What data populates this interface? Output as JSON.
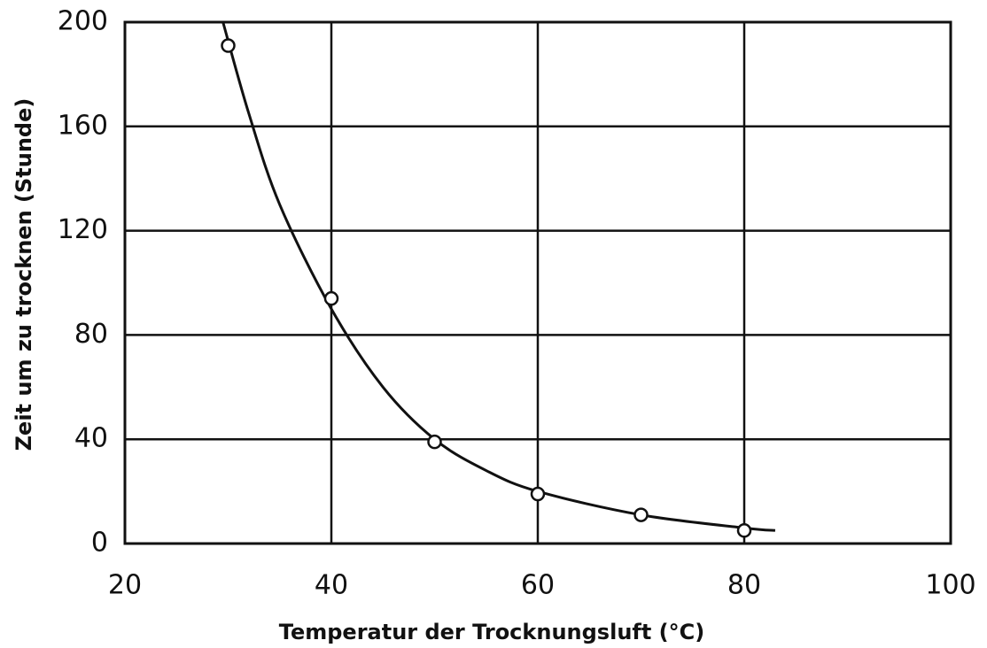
{
  "chart_data": {
    "type": "scatter",
    "xlabel": "Temperatur der Trocknungsluft (°C)",
    "ylabel": "Zeit um zu trocknen (Stunde)",
    "xlim": [
      20,
      100
    ],
    "xticks": [
      20,
      40,
      60,
      80,
      100
    ],
    "ylim": [
      0,
      200
    ],
    "yticks": [
      0,
      40,
      80,
      120,
      160,
      200
    ],
    "grid": true,
    "color": "#111111",
    "series": [
      {
        "marker": "circle",
        "x": [
          30,
          40,
          50,
          60,
          70,
          80
        ],
        "values": [
          191,
          94,
          39,
          19,
          11,
          5
        ]
      },
      {
        "line": true,
        "x": [
          29.5,
          32,
          35,
          40,
          45,
          50,
          55,
          60,
          70,
          80,
          83
        ],
        "values": [
          200,
          165,
          130,
          90,
          60,
          40,
          28,
          20,
          11,
          6,
          5
        ]
      }
    ]
  }
}
